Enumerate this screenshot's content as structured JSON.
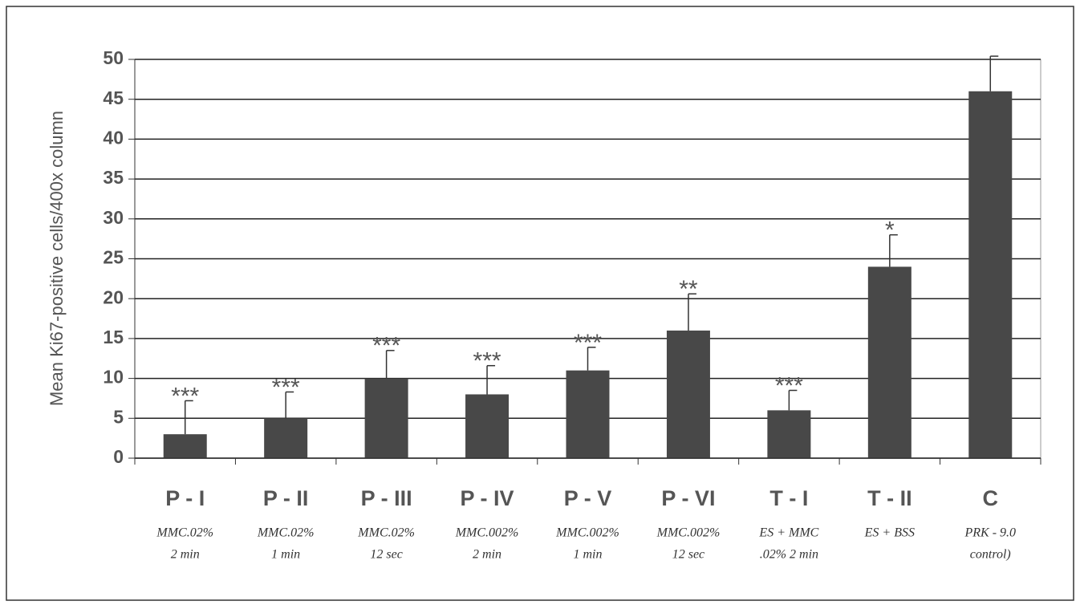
{
  "chart_data": {
    "type": "bar",
    "ylabel": "Mean Ki67-positive cells/400x column",
    "categories": [
      "P - I",
      "P - II",
      "P - III",
      "P - IV",
      "P - V",
      "P - VI",
      "T - I",
      "T - II",
      "C"
    ],
    "sublabels": [
      [
        "MMC.02%",
        "2 min"
      ],
      [
        "MMC.02%",
        "1 min"
      ],
      [
        "MMC.02%",
        "12 sec"
      ],
      [
        "MMC.002%",
        "2 min"
      ],
      [
        "MMC.002%",
        "1 min"
      ],
      [
        "MMC.002%",
        "12 sec"
      ],
      [
        "ES + MMC",
        ".02% 2 min"
      ],
      [
        "ES + BSS"
      ],
      [
        "PRK - 9.0",
        "control)"
      ]
    ],
    "values": [
      3,
      5,
      10,
      8,
      11,
      16,
      6,
      24,
      46
    ],
    "errors": [
      4.2,
      3.3,
      3.5,
      3.6,
      2.9,
      4.6,
      2.5,
      4,
      4.4
    ],
    "annotations": [
      "***",
      "***",
      "***",
      "***",
      "***",
      "**",
      "***",
      "*",
      null
    ],
    "color": "#484848",
    "ylim": [
      0,
      50
    ],
    "yticks": [
      0,
      5,
      10,
      15,
      20,
      25,
      30,
      35,
      40,
      45,
      50
    ],
    "grid": true
  }
}
